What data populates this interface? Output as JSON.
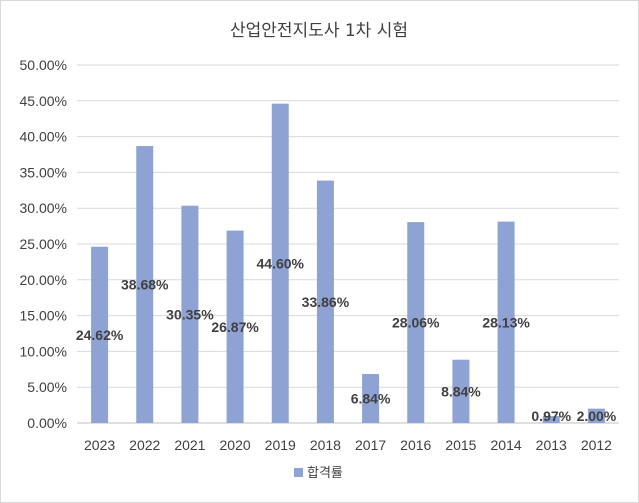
{
  "chart_data": {
    "type": "bar",
    "title": "산업안전지도사 1차 시험",
    "categories": [
      "2023",
      "2022",
      "2021",
      "2020",
      "2019",
      "2018",
      "2017",
      "2016",
      "2015",
      "2014",
      "2013",
      "2012"
    ],
    "series": [
      {
        "name": "합격률",
        "values": [
          24.62,
          38.68,
          30.35,
          26.87,
          44.6,
          33.86,
          6.84,
          28.06,
          8.84,
          28.13,
          0.97,
          2.0
        ],
        "labels": [
          "24.62%",
          "38.68%",
          "30.35%",
          "26.87%",
          "44.60%",
          "33.86%",
          "6.84%",
          "28.06%",
          "8.84%",
          "28.13%",
          "0.97%",
          "2.00%"
        ],
        "color": "#8FA2D4"
      }
    ],
    "ylim": [
      0,
      50
    ],
    "yticks": [
      0,
      5,
      10,
      15,
      20,
      25,
      30,
      35,
      40,
      45,
      50
    ],
    "ytick_labels": [
      "0.00%",
      "5.00%",
      "10.00%",
      "15.00%",
      "20.00%",
      "25.00%",
      "30.00%",
      "35.00%",
      "40.00%",
      "45.00%",
      "50.00%"
    ],
    "grid": true,
    "legend": "bottom",
    "xlabel": "",
    "ylabel": ""
  }
}
